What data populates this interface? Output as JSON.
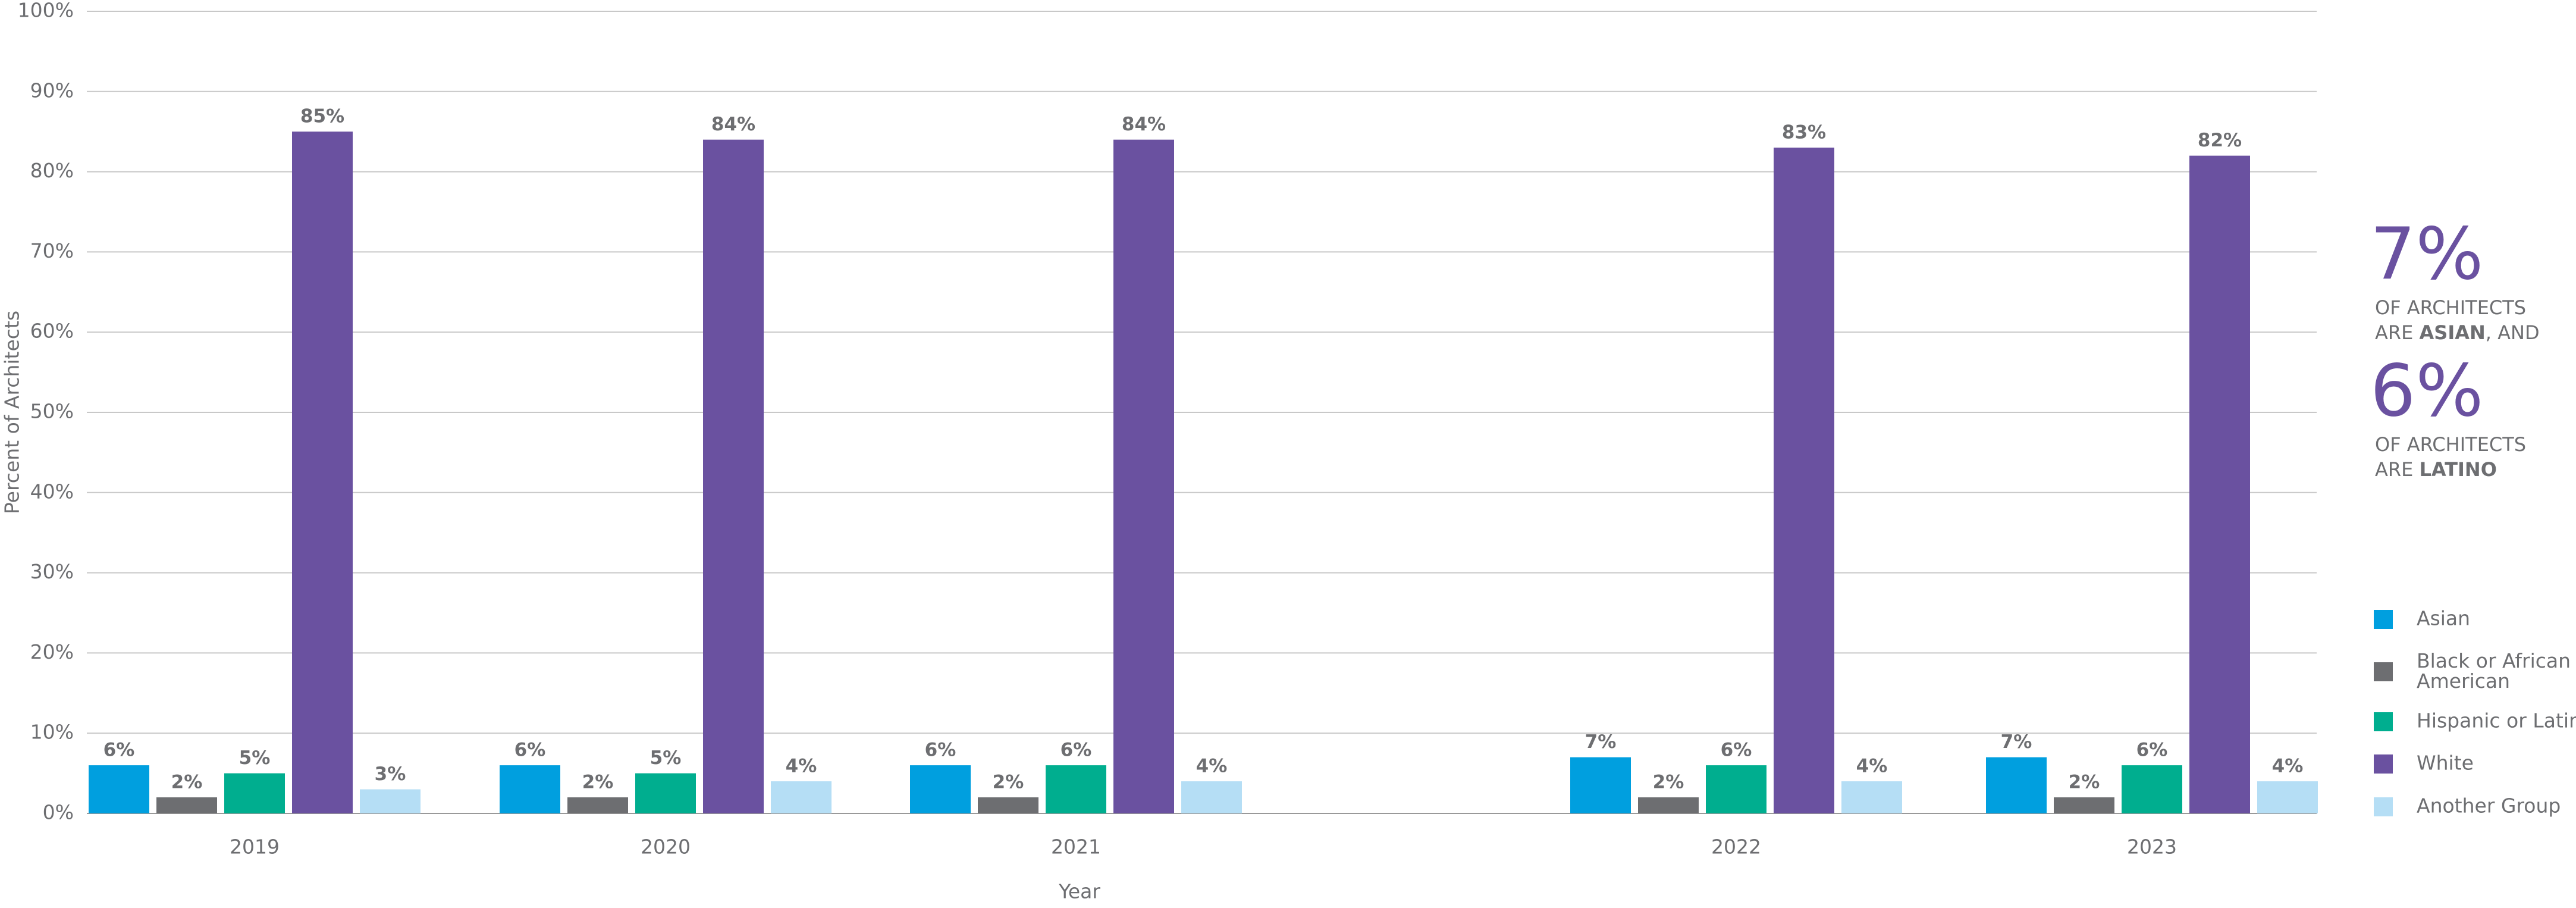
{
  "chart_data": {
    "type": "bar",
    "x_label": "Year",
    "y_label": "Percent of Architects",
    "categories": [
      "2019",
      "2020",
      "2021",
      "2022",
      "2023"
    ],
    "series": [
      {
        "name": "Asian",
        "color": "#009fdf",
        "values": [
          6,
          6,
          6,
          7,
          7
        ],
        "value_labels": [
          "6%",
          "6%",
          "6%",
          "7%",
          "7%"
        ]
      },
      {
        "name": "Black or African American",
        "color": "#6d6e71",
        "values": [
          2,
          2,
          2,
          2,
          2
        ],
        "value_labels": [
          "2%",
          "2%",
          "2%",
          "2%",
          "2%"
        ]
      },
      {
        "name": "Hispanic or Latino",
        "color": "#00ae8f",
        "values": [
          5,
          5,
          6,
          6,
          6
        ],
        "value_labels": [
          "5%",
          "5%",
          "6%",
          "6%",
          "6%"
        ]
      },
      {
        "name": "White",
        "color": "#6a51a0",
        "values": [
          85,
          84,
          84,
          83,
          82
        ],
        "value_labels": [
          "85%",
          "84%",
          "84%",
          "83%",
          "82%"
        ]
      },
      {
        "name": "Another Group",
        "color": "#b5def5",
        "values": [
          3,
          4,
          4,
          4,
          4
        ],
        "value_labels": [
          "3%",
          "4%",
          "4%",
          "4%",
          "4%"
        ]
      }
    ],
    "ylim": [
      0,
      100
    ],
    "yticks": [
      {
        "value": 0,
        "label": "0%"
      },
      {
        "value": 10,
        "label": "10%"
      },
      {
        "value": 20,
        "label": "20%"
      },
      {
        "value": 30,
        "label": "30%"
      },
      {
        "value": 40,
        "label": "40%"
      },
      {
        "value": 50,
        "label": "50%"
      },
      {
        "value": 60,
        "label": "60%"
      },
      {
        "value": 70,
        "label": "70%"
      },
      {
        "value": 80,
        "label": "80%"
      },
      {
        "value": 90,
        "label": "90%"
      },
      {
        "value": 100,
        "label": "100%"
      }
    ],
    "grid": true,
    "legend": "right",
    "annotations": [
      {
        "big": "7%",
        "line1": "OF ARCHITECTS",
        "line2_pre": "ARE ",
        "line2_bold": "ASIAN",
        "line2_post": ", AND"
      },
      {
        "big": "6%",
        "line1": "OF ARCHITECTS",
        "line2_pre": "ARE ",
        "line2_bold": "LATINO"
      }
    ]
  }
}
